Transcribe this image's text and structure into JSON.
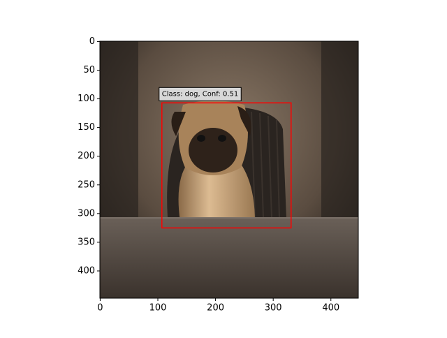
{
  "chart_data": {
    "type": "image",
    "xlim": [
      -0.5,
      447.5
    ],
    "ylim": [
      447.5,
      -0.5
    ],
    "xticks": [
      0,
      100,
      200,
      300,
      400
    ],
    "yticks": [
      0,
      50,
      100,
      150,
      200,
      250,
      300,
      350,
      400
    ],
    "boxes": [
      {
        "label": "Class: dog, Conf: 0.51",
        "color": "#ff0000",
        "x0": 107,
        "y0": 107,
        "x1": 331,
        "y1": 325
      }
    ]
  }
}
